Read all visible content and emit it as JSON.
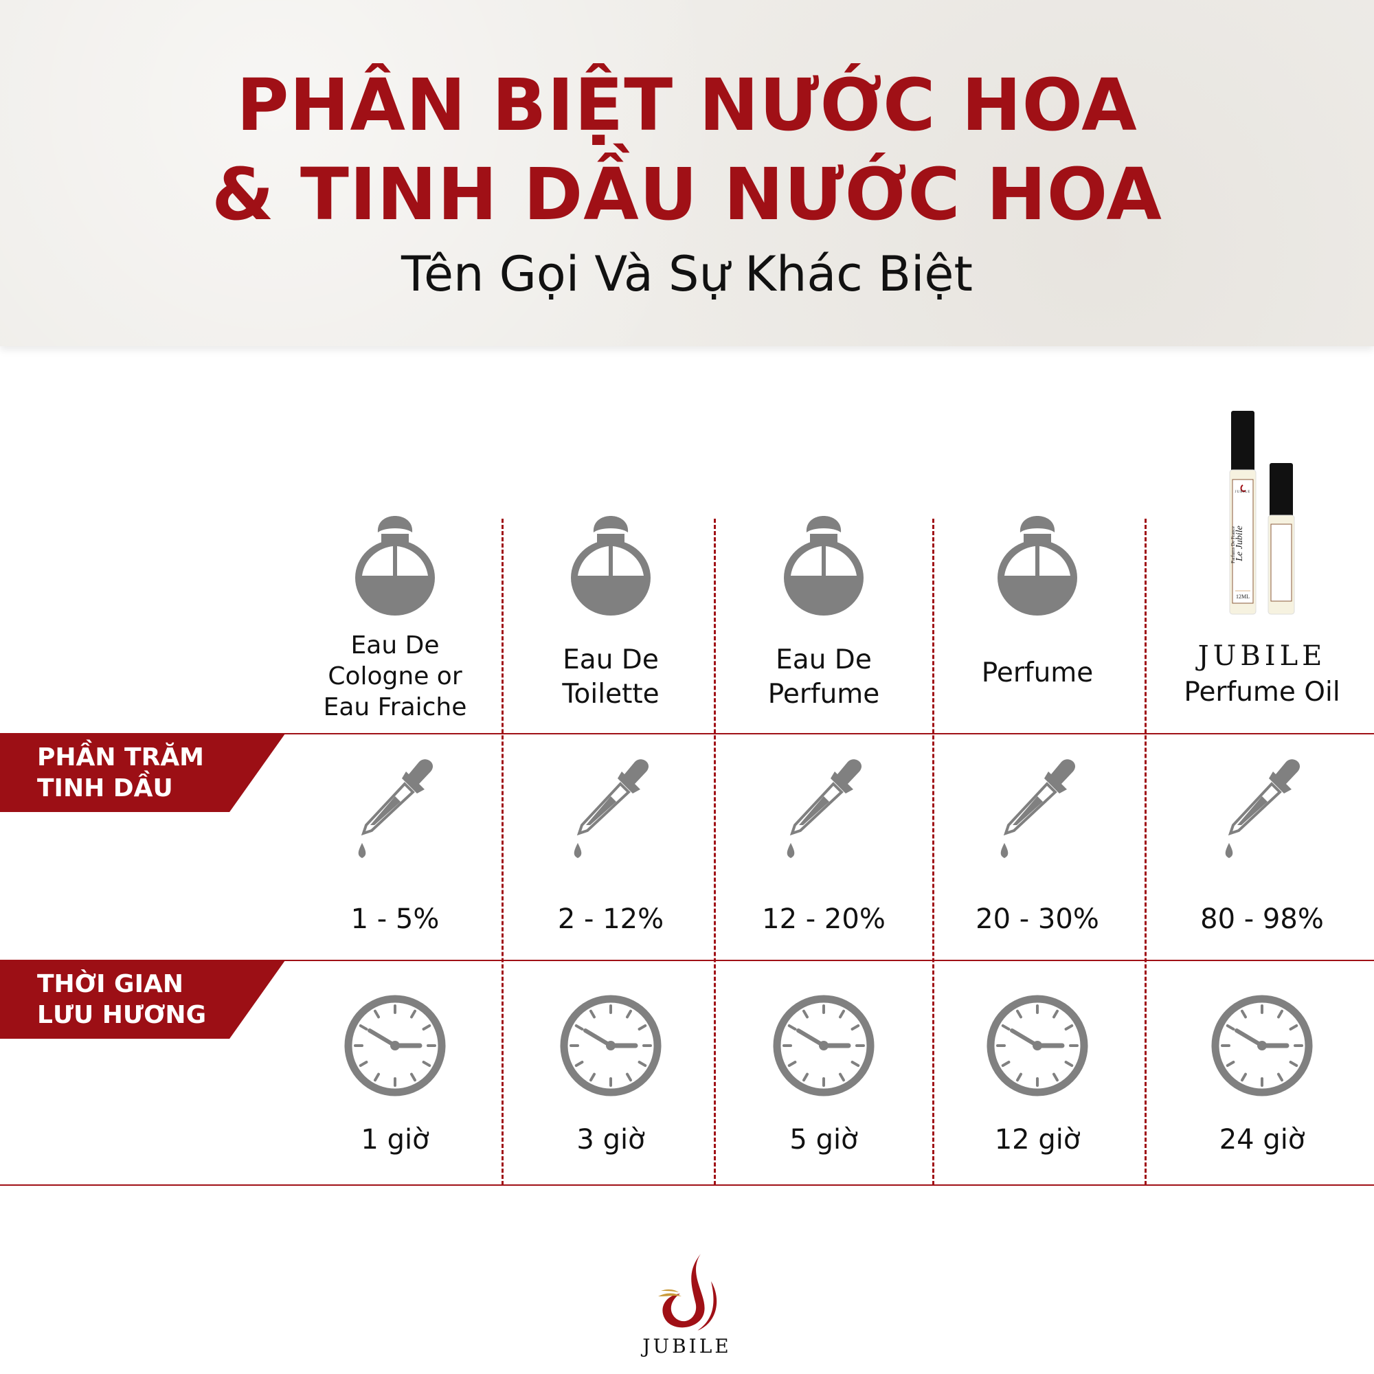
{
  "header": {
    "title_line1": "PHÂN BIỆT NƯỚC HOA",
    "title_line2": "& TINH DẦU NƯỚC HOA",
    "subtitle": "Tên Gọi Và Sự Khác Biệt"
  },
  "rows": {
    "oil_percent_label": [
      "PHẦN TRĂM",
      "TINH DẦU"
    ],
    "longevity_label": [
      "THỜI GIAN",
      "LƯU HƯƠNG"
    ]
  },
  "columns": [
    {
      "name_lines": [
        "Eau De",
        "Cologne or",
        "Eau Fraiche"
      ],
      "oil_percent": "1 - 5%",
      "longevity": "1 giờ",
      "icon": "perfume-bottle-icon"
    },
    {
      "name_lines": [
        "Eau De",
        "Toilette"
      ],
      "oil_percent": "2 - 12%",
      "longevity": "3 giờ",
      "icon": "perfume-bottle-icon"
    },
    {
      "name_lines": [
        "Eau De",
        "Perfume"
      ],
      "oil_percent": "12 - 20%",
      "longevity": "5 giờ",
      "icon": "perfume-bottle-icon"
    },
    {
      "name_lines": [
        "Perfume"
      ],
      "oil_percent": "20 - 30%",
      "longevity": "12 giờ",
      "icon": "perfume-bottle-icon"
    },
    {
      "brand": "JUBILE",
      "name_lines": [
        "Perfume Oil"
      ],
      "oil_percent": "80 - 98%",
      "longevity": "24 giờ",
      "icon": "product-photo",
      "product_label": {
        "brand": "JUBILE",
        "line": "Parfums De France",
        "script": "Le Jubile",
        "size": "12ML"
      }
    }
  ],
  "footer": {
    "logo_text": "JUBILE"
  },
  "colors": {
    "accent": "#a01016",
    "icon_gray": "#808080",
    "header_bg": "#efede9"
  }
}
